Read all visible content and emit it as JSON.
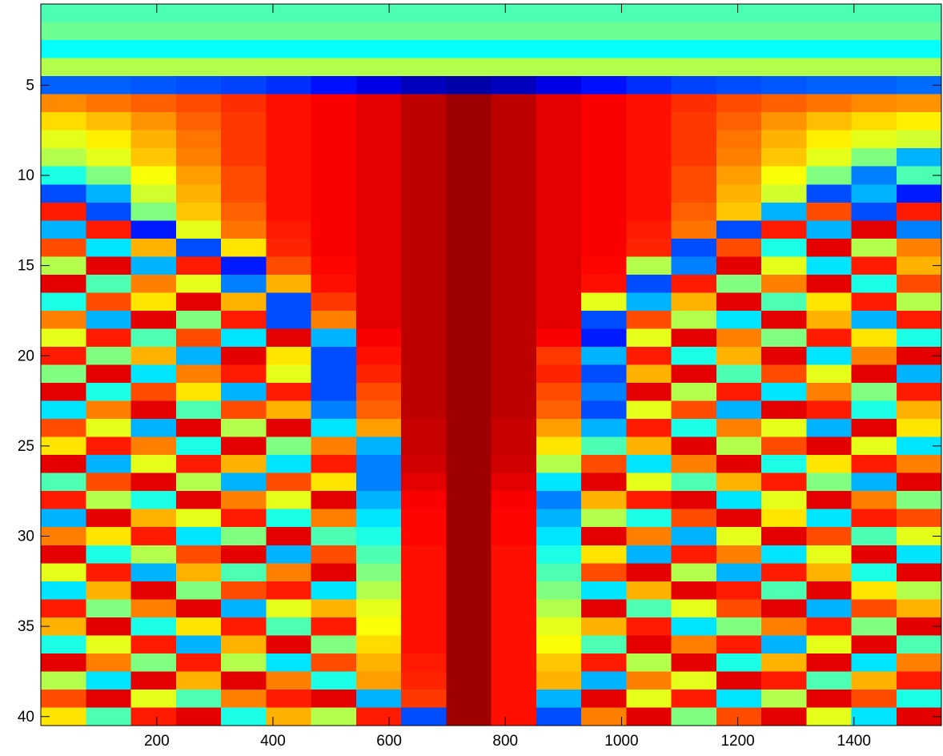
{
  "chart_data": {
    "type": "heatmap",
    "colormap": "jet",
    "x": [
      39.25,
      116.75,
      194.25,
      271.75,
      349.25,
      426.75,
      504.25,
      581.75,
      659.25,
      736.75,
      814.25,
      891.75,
      969.25,
      1046.75,
      1124.25,
      1201.75,
      1279.25,
      1356.75,
      1434.25,
      1511.75
    ],
    "y": [
      1,
      2,
      3,
      4,
      5,
      6,
      7,
      8,
      9,
      10,
      11,
      12,
      13,
      14,
      15,
      16,
      17,
      18,
      19,
      20,
      21,
      22,
      23,
      24,
      25,
      26,
      27,
      28,
      29,
      30,
      31,
      32,
      33,
      34,
      35,
      36,
      37,
      38,
      39,
      40
    ],
    "xlim": [
      0.5,
      1550.5
    ],
    "ylim": [
      0.5,
      40.5
    ],
    "y_direction": "reverse",
    "xticks": [
      200,
      400,
      600,
      800,
      1000,
      1200,
      1400
    ],
    "yticks": [
      5,
      10,
      15,
      20,
      25,
      30,
      35,
      40
    ],
    "z": [
      [
        0.45,
        0.45,
        0.45,
        0.45,
        0.45,
        0.45,
        0.45,
        0.45,
        0.45,
        0.45,
        0.45,
        0.45,
        0.45,
        0.45,
        0.45,
        0.45,
        0.45,
        0.45,
        0.45,
        0.45
      ],
      [
        0.48,
        0.48,
        0.48,
        0.48,
        0.48,
        0.48,
        0.48,
        0.48,
        0.48,
        0.48,
        0.48,
        0.48,
        0.48,
        0.48,
        0.48,
        0.48,
        0.48,
        0.48,
        0.48,
        0.48
      ],
      [
        0.38,
        0.38,
        0.38,
        0.38,
        0.38,
        0.38,
        0.38,
        0.38,
        0.38,
        0.38,
        0.38,
        0.38,
        0.38,
        0.38,
        0.38,
        0.38,
        0.38,
        0.38,
        0.38,
        0.38
      ],
      [
        0.55,
        0.55,
        0.55,
        0.55,
        0.55,
        0.55,
        0.55,
        0.55,
        0.55,
        0.55,
        0.55,
        0.55,
        0.55,
        0.55,
        0.55,
        0.55,
        0.55,
        0.55,
        0.55,
        0.55
      ],
      [
        0.22,
        0.22,
        0.21,
        0.2,
        0.19,
        0.17,
        0.14,
        0.1,
        0.06,
        0.04,
        0.06,
        0.1,
        0.14,
        0.17,
        0.19,
        0.2,
        0.21,
        0.22,
        0.22,
        0.23
      ],
      [
        0.74,
        0.76,
        0.78,
        0.8,
        0.83,
        0.86,
        0.88,
        0.9,
        0.94,
        0.97,
        0.94,
        0.9,
        0.88,
        0.86,
        0.83,
        0.8,
        0.78,
        0.76,
        0.74,
        0.73
      ],
      [
        0.66,
        0.69,
        0.73,
        0.78,
        0.82,
        0.86,
        0.88,
        0.9,
        0.94,
        0.97,
        0.94,
        0.9,
        0.88,
        0.86,
        0.82,
        0.78,
        0.73,
        0.69,
        0.66,
        0.64
      ],
      [
        0.6,
        0.64,
        0.7,
        0.76,
        0.82,
        0.86,
        0.88,
        0.9,
        0.94,
        0.97,
        0.94,
        0.9,
        0.88,
        0.86,
        0.82,
        0.76,
        0.7,
        0.64,
        0.6,
        0.58
      ],
      [
        0.55,
        0.6,
        0.68,
        0.75,
        0.82,
        0.86,
        0.88,
        0.9,
        0.94,
        0.97,
        0.94,
        0.9,
        0.88,
        0.86,
        0.82,
        0.75,
        0.68,
        0.6,
        0.5,
        0.3
      ],
      [
        0.4,
        0.5,
        0.62,
        0.72,
        0.8,
        0.86,
        0.88,
        0.9,
        0.94,
        0.97,
        0.94,
        0.9,
        0.88,
        0.86,
        0.8,
        0.72,
        0.62,
        0.5,
        0.25,
        0.45
      ],
      [
        0.2,
        0.3,
        0.58,
        0.7,
        0.8,
        0.86,
        0.88,
        0.9,
        0.94,
        0.97,
        0.94,
        0.9,
        0.88,
        0.86,
        0.8,
        0.7,
        0.58,
        0.2,
        0.3,
        0.15
      ],
      [
        0.85,
        0.2,
        0.5,
        0.68,
        0.78,
        0.86,
        0.88,
        0.9,
        0.94,
        0.97,
        0.94,
        0.9,
        0.88,
        0.86,
        0.78,
        0.68,
        0.3,
        0.8,
        0.2,
        0.85
      ],
      [
        0.3,
        0.85,
        0.15,
        0.6,
        0.76,
        0.85,
        0.88,
        0.9,
        0.94,
        0.97,
        0.94,
        0.9,
        0.88,
        0.85,
        0.76,
        0.2,
        0.85,
        0.3,
        0.9,
        0.25
      ],
      [
        0.8,
        0.35,
        0.7,
        0.2,
        0.65,
        0.84,
        0.88,
        0.9,
        0.94,
        0.97,
        0.94,
        0.9,
        0.88,
        0.84,
        0.2,
        0.8,
        0.4,
        0.9,
        0.55,
        0.75
      ],
      [
        0.55,
        0.9,
        0.3,
        0.85,
        0.15,
        0.8,
        0.87,
        0.9,
        0.94,
        0.97,
        0.94,
        0.9,
        0.87,
        0.55,
        0.25,
        0.9,
        0.6,
        0.35,
        0.85,
        0.7
      ],
      [
        0.9,
        0.45,
        0.75,
        0.6,
        0.25,
        0.7,
        0.86,
        0.9,
        0.94,
        0.97,
        0.94,
        0.9,
        0.86,
        0.2,
        0.85,
        0.5,
        0.75,
        0.9,
        0.4,
        0.8
      ],
      [
        0.4,
        0.8,
        0.65,
        0.9,
        0.7,
        0.2,
        0.82,
        0.9,
        0.94,
        0.97,
        0.94,
        0.9,
        0.6,
        0.3,
        0.7,
        0.9,
        0.45,
        0.65,
        0.85,
        0.55
      ],
      [
        0.75,
        0.3,
        0.9,
        0.5,
        0.85,
        0.2,
        0.75,
        0.9,
        0.94,
        0.97,
        0.94,
        0.9,
        0.2,
        0.8,
        0.55,
        0.35,
        0.9,
        0.7,
        0.3,
        0.85
      ],
      [
        0.6,
        0.85,
        0.45,
        0.8,
        0.35,
        0.9,
        0.3,
        0.88,
        0.94,
        0.97,
        0.94,
        0.88,
        0.15,
        0.6,
        0.9,
        0.75,
        0.5,
        0.85,
        0.65,
        0.4
      ],
      [
        0.85,
        0.5,
        0.7,
        0.3,
        0.9,
        0.65,
        0.2,
        0.86,
        0.94,
        0.97,
        0.94,
        0.82,
        0.3,
        0.85,
        0.4,
        0.7,
        0.9,
        0.35,
        0.75,
        0.9
      ],
      [
        0.5,
        0.9,
        0.35,
        0.75,
        0.85,
        0.6,
        0.2,
        0.84,
        0.94,
        0.97,
        0.94,
        0.84,
        0.2,
        0.7,
        0.9,
        0.45,
        0.8,
        0.6,
        0.9,
        0.3
      ],
      [
        0.9,
        0.4,
        0.8,
        0.65,
        0.3,
        0.85,
        0.2,
        0.8,
        0.94,
        0.97,
        0.94,
        0.8,
        0.25,
        0.9,
        0.55,
        0.85,
        0.35,
        0.75,
        0.5,
        0.85
      ],
      [
        0.35,
        0.75,
        0.9,
        0.45,
        0.8,
        0.7,
        0.25,
        0.78,
        0.94,
        0.97,
        0.94,
        0.78,
        0.2,
        0.6,
        0.8,
        0.3,
        0.9,
        0.85,
        0.4,
        0.7
      ],
      [
        0.8,
        0.6,
        0.3,
        0.9,
        0.55,
        0.9,
        0.35,
        0.72,
        0.93,
        0.97,
        0.93,
        0.72,
        0.3,
        0.85,
        0.4,
        0.75,
        0.6,
        0.3,
        0.9,
        0.65
      ],
      [
        0.65,
        0.85,
        0.75,
        0.4,
        0.9,
        0.5,
        0.75,
        0.3,
        0.93,
        0.97,
        0.93,
        0.65,
        0.45,
        0.7,
        0.9,
        0.55,
        0.8,
        0.9,
        0.6,
        0.35
      ],
      [
        0.9,
        0.3,
        0.6,
        0.85,
        0.7,
        0.35,
        0.85,
        0.25,
        0.92,
        0.97,
        0.92,
        0.55,
        0.8,
        0.35,
        0.75,
        0.9,
        0.4,
        0.65,
        0.85,
        0.75
      ],
      [
        0.45,
        0.8,
        0.9,
        0.55,
        0.3,
        0.8,
        0.65,
        0.25,
        0.9,
        0.97,
        0.9,
        0.35,
        0.9,
        0.6,
        0.45,
        0.7,
        0.85,
        0.5,
        0.3,
        0.9
      ],
      [
        0.85,
        0.55,
        0.4,
        0.9,
        0.75,
        0.6,
        0.9,
        0.3,
        0.88,
        0.97,
        0.88,
        0.25,
        0.7,
        0.85,
        0.9,
        0.35,
        0.6,
        0.9,
        0.75,
        0.5
      ],
      [
        0.3,
        0.9,
        0.7,
        0.6,
        0.85,
        0.4,
        0.75,
        0.35,
        0.87,
        0.97,
        0.87,
        0.3,
        0.55,
        0.4,
        0.8,
        0.9,
        0.65,
        0.35,
        0.85,
        0.8
      ],
      [
        0.75,
        0.65,
        0.85,
        0.35,
        0.5,
        0.9,
        0.45,
        0.4,
        0.87,
        0.97,
        0.87,
        0.35,
        0.9,
        0.75,
        0.3,
        0.6,
        0.9,
        0.8,
        0.45,
        0.6
      ],
      [
        0.9,
        0.4,
        0.55,
        0.8,
        0.9,
        0.3,
        0.8,
        0.45,
        0.86,
        0.97,
        0.86,
        0.4,
        0.65,
        0.3,
        0.85,
        0.75,
        0.35,
        0.6,
        0.9,
        0.35
      ],
      [
        0.6,
        0.85,
        0.3,
        0.7,
        0.45,
        0.75,
        0.9,
        0.5,
        0.86,
        0.97,
        0.86,
        0.45,
        0.8,
        0.9,
        0.55,
        0.3,
        0.85,
        0.7,
        0.4,
        0.9
      ],
      [
        0.35,
        0.7,
        0.9,
        0.5,
        0.8,
        0.85,
        0.35,
        0.55,
        0.86,
        0.97,
        0.86,
        0.5,
        0.35,
        0.7,
        0.9,
        0.85,
        0.45,
        0.9,
        0.65,
        0.55
      ],
      [
        0.85,
        0.5,
        0.75,
        0.9,
        0.3,
        0.6,
        0.7,
        0.6,
        0.86,
        0.97,
        0.86,
        0.55,
        0.9,
        0.45,
        0.6,
        0.8,
        0.9,
        0.3,
        0.8,
        0.7
      ],
      [
        0.7,
        0.9,
        0.4,
        0.65,
        0.85,
        0.45,
        0.85,
        0.62,
        0.86,
        0.97,
        0.86,
        0.6,
        0.7,
        0.85,
        0.35,
        0.5,
        0.75,
        0.85,
        0.5,
        0.9
      ],
      [
        0.4,
        0.6,
        0.85,
        0.3,
        0.7,
        0.9,
        0.5,
        0.66,
        0.86,
        0.97,
        0.86,
        0.62,
        0.45,
        0.9,
        0.75,
        0.85,
        0.3,
        0.6,
        0.9,
        0.45
      ],
      [
        0.9,
        0.75,
        0.5,
        0.85,
        0.55,
        0.35,
        0.8,
        0.7,
        0.85,
        0.97,
        0.86,
        0.68,
        0.85,
        0.55,
        0.9,
        0.4,
        0.7,
        0.9,
        0.35,
        0.75
      ],
      [
        0.55,
        0.35,
        0.9,
        0.7,
        0.9,
        0.75,
        0.4,
        0.72,
        0.84,
        0.97,
        0.86,
        0.7,
        0.3,
        0.75,
        0.6,
        0.9,
        0.85,
        0.45,
        0.7,
        0.85
      ],
      [
        0.8,
        0.9,
        0.6,
        0.45,
        0.75,
        0.85,
        0.9,
        0.3,
        0.82,
        0.97,
        0.86,
        0.3,
        0.9,
        0.6,
        0.85,
        0.35,
        0.55,
        0.9,
        0.8,
        0.4
      ],
      [
        0.65,
        0.45,
        0.85,
        0.9,
        0.4,
        0.7,
        0.55,
        0.85,
        0.2,
        0.97,
        0.86,
        0.2,
        0.75,
        0.9,
        0.5,
        0.8,
        0.9,
        0.6,
        0.35,
        0.9
      ]
    ]
  }
}
